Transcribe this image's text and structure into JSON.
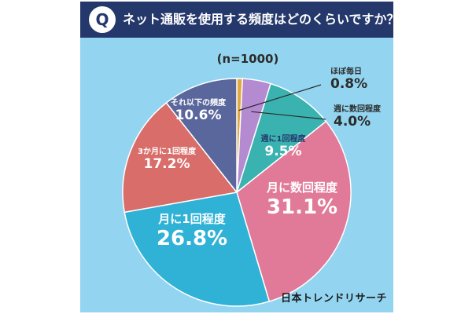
{
  "header": {
    "badge": "Q",
    "question": "ネット通販を使用する頻度はどのくらいですか？"
  },
  "sample_size": "(n=1000)",
  "brand": "日本トレンドリサーチ",
  "chart_data": {
    "type": "pie",
    "title": "ネット通販を使用する頻度はどのくらいですか？",
    "n": 1000,
    "unit": "%",
    "start": "top, clockwise",
    "slices": [
      {
        "label": "ほぼ毎日",
        "value": 0.8,
        "value_text": "0.8%",
        "color": "#e0aa3e"
      },
      {
        "label": "週に数回程度",
        "value": 4.0,
        "value_text": "4.0%",
        "color": "#b48ad0"
      },
      {
        "label": "週に1回程度",
        "value": 9.5,
        "value_text": "9.5%",
        "color": "#3ab3b0"
      },
      {
        "label": "月に数回程度",
        "value": 31.1,
        "value_text": "31.1%",
        "color": "#e07a98"
      },
      {
        "label": "月に1回程度",
        "value": 26.8,
        "value_text": "26.8%",
        "color": "#2fb2d6"
      },
      {
        "label": "3か月に1回程度",
        "value": 17.2,
        "value_text": "17.2%",
        "color": "#d86d6a"
      },
      {
        "label": "それ以下の頻度",
        "value": 10.6,
        "value_text": "10.6%",
        "color": "#5a679c"
      }
    ]
  }
}
